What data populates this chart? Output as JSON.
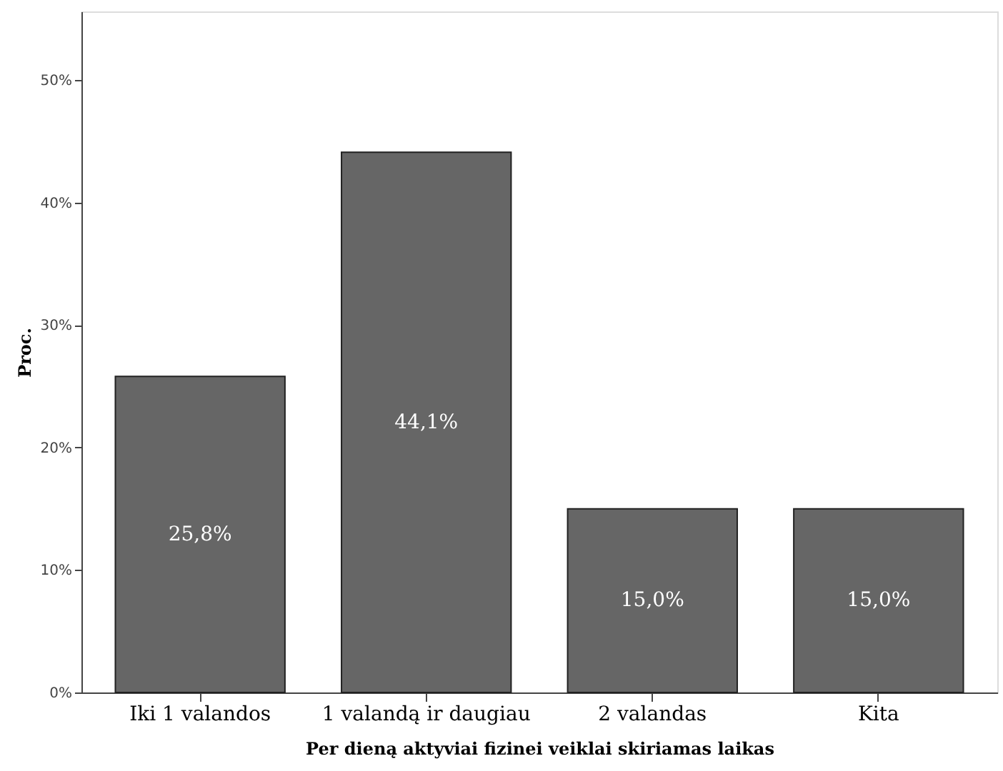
{
  "chart_data": {
    "type": "bar",
    "categories": [
      "Iki 1 valandos",
      "1 valandą ir daugiau",
      "2 valandas",
      "Kita"
    ],
    "values": [
      25.8,
      44.1,
      15.0,
      15.0
    ],
    "value_labels": [
      "25,8%",
      "44,1%",
      "15,0%",
      "15,0%"
    ],
    "color": "#666666",
    "xlabel": "Per dieną aktyviai fizinei veiklai skiriamas laikas",
    "ylabel": "Proc.",
    "ylim": [
      0,
      55.6
    ],
    "yticks": [
      {
        "value": 0,
        "label": "0%"
      },
      {
        "value": 10,
        "label": "10%"
      },
      {
        "value": 20,
        "label": "20%"
      },
      {
        "value": 30,
        "label": "30%"
      },
      {
        "value": 40,
        "label": "40%"
      },
      {
        "value": 50,
        "label": "50%"
      }
    ],
    "grid": false
  }
}
